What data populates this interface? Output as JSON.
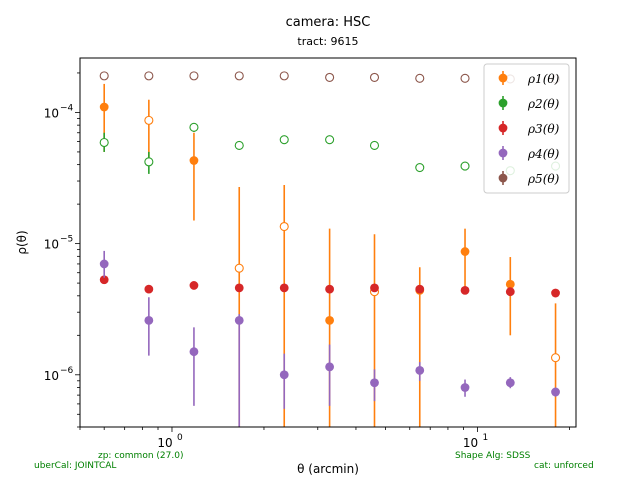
{
  "title": "camera: HSC",
  "subtitle": "tract: 9615",
  "footnotes": {
    "zp": "zp: common (27.0)",
    "ubercal": "uberCal: JOINTCAL",
    "shape_alg": "Shape Alg: SDSS",
    "cat": "cat: unforced"
  },
  "chart_data": {
    "type": "scatter",
    "title": "camera: HSC",
    "subtitle": "tract: 9615",
    "xlabel": "θ (arcmin)",
    "ylabel": "ρ(θ)",
    "xscale": "log",
    "yscale": "log",
    "xlim": [
      0.5,
      21
    ],
    "ylim": [
      4e-07,
      0.00026
    ],
    "xticks": [
      {
        "value": 1,
        "label": "10^0"
      },
      {
        "value": 10,
        "label": "10^1"
      }
    ],
    "yticks": [
      {
        "value": 1e-06,
        "label": "10^-6"
      },
      {
        "value": 1e-05,
        "label": "10^-5"
      },
      {
        "value": 0.0001,
        "label": "10^-4"
      }
    ],
    "grid": false,
    "legend_position": "top-right",
    "x": [
      0.6,
      0.84,
      1.18,
      1.66,
      2.33,
      3.28,
      4.6,
      6.47,
      9.1,
      12.8,
      18.0
    ],
    "series": [
      {
        "name": "ρ1(θ)",
        "color": "#ff7f0e",
        "values": [
          0.00011,
          8.7e-05,
          4.3e-05,
          6.5e-06,
          1.35e-05,
          2.6e-06,
          4.3e-06,
          4.4e-06,
          8.7e-06,
          4.9e-06,
          1.35e-06
        ],
        "negative": [
          false,
          true,
          false,
          true,
          true,
          false,
          true,
          false,
          false,
          false,
          true
        ],
        "err_low": [
          5e-05,
          4e-05,
          1.5e-05,
          0,
          0,
          0,
          0,
          0,
          4.5e-06,
          2e-06,
          0
        ],
        "err_high": [
          0.000165,
          0.000125,
          7e-05,
          2.7e-05,
          2.8e-05,
          1.3e-05,
          1.18e-05,
          6.6e-06,
          1.3e-05,
          7.9e-06,
          3.5e-06
        ]
      },
      {
        "name": "ρ2(θ)",
        "color": "#2ca02c",
        "values": [
          5.9e-05,
          4.2e-05,
          7.7e-05,
          5.6e-05,
          6.2e-05,
          6.2e-05,
          5.6e-05,
          3.8e-05,
          3.9e-05,
          3.6e-05,
          3.9e-05
        ],
        "negative": [
          true,
          true,
          true,
          true,
          true,
          true,
          true,
          true,
          true,
          true,
          true
        ],
        "err_low": [
          5e-05,
          3.4e-05,
          7.1e-05,
          5.2e-05,
          5.8e-05,
          5.8e-05,
          5.2e-05,
          3.6e-05,
          3.7e-05,
          3.4e-05,
          3.7e-05
        ],
        "err_high": [
          7e-05,
          5e-05,
          8.3e-05,
          6e-05,
          6.6e-05,
          6.6e-05,
          6e-05,
          4e-05,
          4.1e-05,
          3.8e-05,
          4.1e-05
        ]
      },
      {
        "name": "ρ3(θ)",
        "color": "#d62728",
        "values": [
          5.3e-06,
          4.5e-06,
          4.8e-06,
          4.6e-06,
          4.6e-06,
          4.5e-06,
          4.6e-06,
          4.5e-06,
          4.4e-06,
          4.3e-06,
          4.2e-06
        ],
        "negative": [
          false,
          false,
          false,
          false,
          false,
          false,
          false,
          false,
          false,
          false,
          false
        ],
        "err_low": [
          5.1e-06,
          4.4e-06,
          4.7e-06,
          4.5e-06,
          4.5e-06,
          4.4e-06,
          4.5e-06,
          4.4e-06,
          4.3e-06,
          4.2e-06,
          4.1e-06
        ],
        "err_high": [
          5.5e-06,
          4.6e-06,
          4.9e-06,
          4.7e-06,
          4.7e-06,
          4.6e-06,
          4.7e-06,
          4.6e-06,
          4.5e-06,
          4.4e-06,
          4.3e-06
        ]
      },
      {
        "name": "ρ4(θ)",
        "color": "#9467bd",
        "values": [
          7e-06,
          2.6e-06,
          1.5e-06,
          2.6e-06,
          1e-06,
          1.15e-06,
          8.7e-07,
          1.08e-06,
          8e-07,
          8.7e-07,
          7.4e-07
        ],
        "negative": [
          false,
          false,
          false,
          false,
          false,
          false,
          false,
          false,
          false,
          false,
          false
        ],
        "err_low": [
          5.5e-06,
          1.4e-06,
          5.8e-07,
          4e-07,
          5.5e-07,
          5.8e-07,
          6.3e-07,
          9e-07,
          6.8e-07,
          7.9e-07,
          6.8e-07
        ],
        "err_high": [
          8.8e-06,
          3.9e-06,
          2.3e-06,
          2.9e-06,
          1.45e-06,
          1.7e-06,
          1.1e-06,
          1.25e-06,
          9.2e-07,
          9.6e-07,
          8e-07
        ]
      },
      {
        "name": "ρ5(θ)",
        "color": "#8c564b",
        "values": [
          0.00019,
          0.00019,
          0.00019,
          0.00019,
          0.00019,
          0.000185,
          0.000185,
          0.000182,
          0.000182,
          0.00018,
          0.00018
        ],
        "negative": [
          true,
          true,
          true,
          true,
          true,
          true,
          true,
          true,
          true,
          true,
          true
        ],
        "err_low": [
          0.000188,
          0.000188,
          0.000188,
          0.000188,
          0.000188,
          0.000183,
          0.000183,
          0.00018,
          0.00018,
          0.000178,
          0.000178
        ],
        "err_high": [
          0.000192,
          0.000192,
          0.000192,
          0.000192,
          0.000192,
          0.000187,
          0.000187,
          0.000184,
          0.000184,
          0.000182,
          0.000182
        ]
      }
    ]
  }
}
